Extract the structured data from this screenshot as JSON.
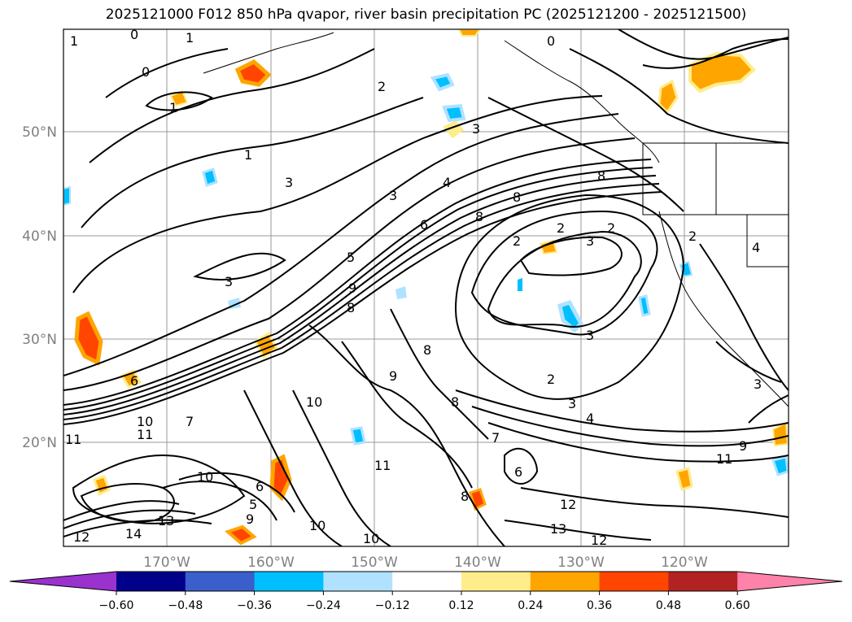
{
  "title": "2025121000 F012 850 hPa qvapor, river basin precipitation PC (2025121200 - 2025121500)",
  "lat_labels": [
    "50°N",
    "40°N",
    "30°N",
    "20°N"
  ],
  "lon_labels": [
    "170°W",
    "160°W",
    "150°W",
    "140°W",
    "130°W",
    "120°W"
  ],
  "contour_labels": [
    "1",
    "0",
    "1",
    "0",
    "2",
    "0",
    "1",
    "3",
    "3",
    "4",
    "3",
    "6",
    "5",
    "8",
    "8",
    "2",
    "2",
    "3",
    "2",
    "3",
    "3",
    "9",
    "8",
    "8",
    "9",
    "10",
    "10",
    "11",
    "11",
    "7",
    "6",
    "10",
    "6",
    "5",
    "9",
    "10",
    "13",
    "14",
    "12",
    "10",
    "11",
    "7",
    "8",
    "2",
    "3",
    "4",
    "12",
    "13",
    "11",
    "9",
    "12",
    "2",
    "4",
    "8",
    "1",
    "8",
    "6",
    "3"
  ],
  "colorbar": {
    "ticks": [
      "−0.60",
      "−0.48",
      "−0.36",
      "−0.24",
      "−0.12",
      "0.12",
      "0.24",
      "0.36",
      "0.48",
      "0.60"
    ],
    "colors": [
      "#9a32cd",
      "#00008b",
      "#3a5fcd",
      "#00bfff",
      "#b0e2ff",
      "#ffffff",
      "#ffec8b",
      "#ffa500",
      "#ff4500",
      "#b22222",
      "#ff82ab"
    ]
  }
}
